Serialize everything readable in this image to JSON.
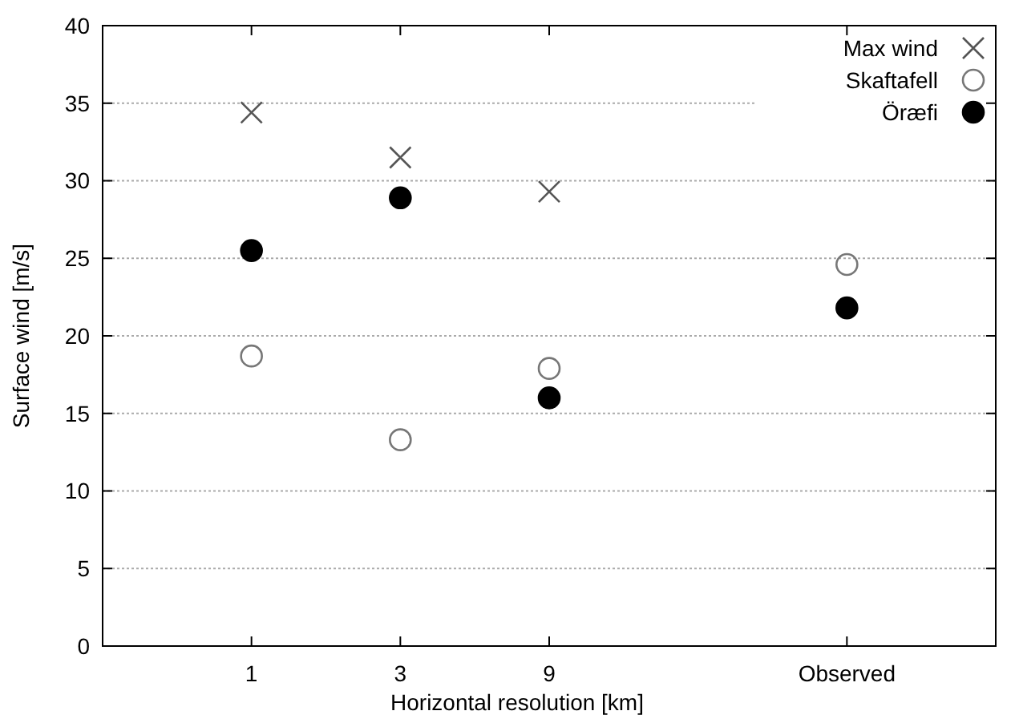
{
  "chart_data": {
    "type": "scatter",
    "xlabel": "Horizontal resolution [km]",
    "ylabel": "Surface wind [m/s]",
    "categories": [
      "1",
      "3",
      "9",
      null,
      "Observed"
    ],
    "ylim": [
      0,
      40
    ],
    "yticks": [
      0,
      5,
      10,
      15,
      20,
      25,
      30,
      35,
      40
    ],
    "grid": "y",
    "legend": "top right",
    "series": [
      {
        "name": "Max wind",
        "color": "#555555",
        "marker": "cross",
        "values": [
          34.4,
          31.5,
          29.3,
          null,
          null
        ]
      },
      {
        "name": "Skaftafell",
        "color": "#777777",
        "marker": "circle-open",
        "values": [
          18.7,
          13.3,
          17.9,
          null,
          24.6
        ]
      },
      {
        "name": "Öræfi",
        "color": "#000000",
        "marker": "circle",
        "values": [
          25.5,
          28.9,
          16.0,
          null,
          21.8
        ]
      }
    ]
  }
}
